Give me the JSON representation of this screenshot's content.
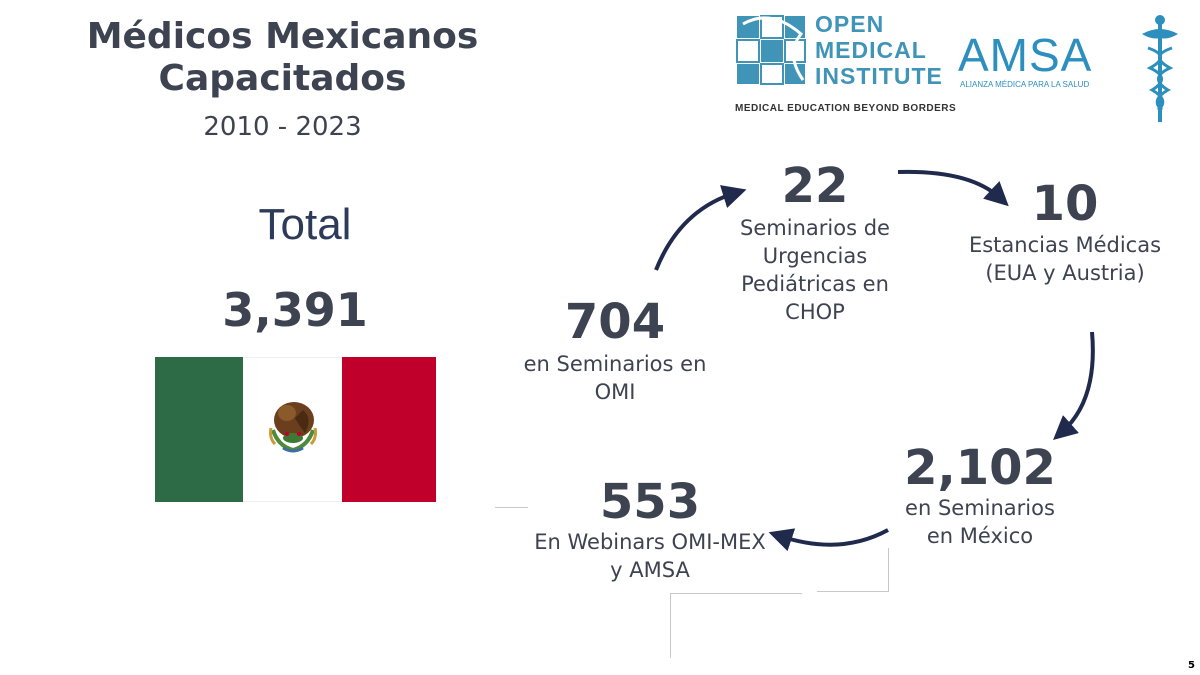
{
  "slide": {
    "title": "Médicos Mexicanos Capacitados",
    "date_range": "2010 - 2023",
    "total_label": "Total",
    "total_value": "3,391",
    "page_number": "5"
  },
  "logos": {
    "omi": {
      "line1": "OPEN",
      "line2": "MEDICAL",
      "line3": "INSTITUTE",
      "tagline": "MEDICAL EDUCATION BEYOND BORDERS",
      "color": "#3f94b8"
    },
    "amsa": {
      "name": "AMSA",
      "tagline": "ALIANZA MÉDICA PARA LA SALUD",
      "icon": "caduceus-icon",
      "color": "#2d8fbd"
    }
  },
  "flag": {
    "icon": "mexico-flag",
    "colors": [
      "#2c6b45",
      "#ffffff",
      "#c0002b"
    ]
  },
  "cycle": {
    "arrow_color": "#1f2a4d",
    "items": [
      {
        "value": "704",
        "text": "en Seminarios en OMI"
      },
      {
        "value": "22",
        "text": "Seminarios de Urgencias Pediátricas en CHOP"
      },
      {
        "value": "10",
        "text": "Estancias Médicas (EUA y Austria)"
      },
      {
        "value": "2,102",
        "text": "en Seminarios en México"
      },
      {
        "value": "553",
        "text": "En Webinars OMI-MEX y  AMSA"
      }
    ]
  }
}
